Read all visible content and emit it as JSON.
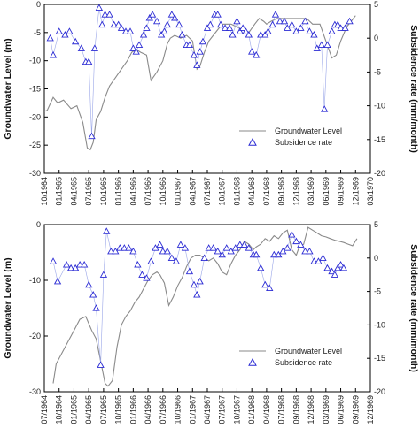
{
  "chart_data": [
    {
      "type": "line",
      "ylabel_left": "Groundwater Level (m)",
      "ylabel_right": "Subsidence rate (mm/month)",
      "y_left_range": [
        -30,
        0
      ],
      "y_left_ticks": [
        "0",
        "-5",
        "-10",
        "-15",
        "-20",
        "-25",
        "-30"
      ],
      "y_right_range": [
        -20,
        5
      ],
      "y_right_ticks": [
        "5",
        "0",
        "-5",
        "-10",
        "-15",
        "-20"
      ],
      "x_range": [
        0,
        22
      ],
      "x_ticks": [
        "10/1964",
        "01/1965",
        "04/1965",
        "07/1965",
        "10/1965",
        "01/1966",
        "04/1966",
        "07/1966",
        "10/1966",
        "01/1967",
        "04/1967",
        "07/1967",
        "10/1967",
        "01/1968",
        "04/1968",
        "07/1968",
        "09/1968",
        "12/1968",
        "03/1969",
        "06/1969",
        "09/1969",
        "12/1969",
        "03/1970"
      ],
      "legend_position": "lower-right",
      "series": [
        {
          "name": "Groundwater Level",
          "axis": "left",
          "style": "line",
          "color": "#8a8a8a",
          "x": [
            0,
            0.2,
            0.6,
            0.9,
            1.3,
            1.8,
            2.2,
            2.6,
            2.9,
            3.1,
            3.3,
            3.5,
            3.8,
            4.1,
            4.4,
            4.8,
            5.2,
            5.6,
            5.9,
            6.2,
            6.5,
            6.9,
            7.2,
            7.6,
            8.0,
            8.3,
            8.5,
            8.8,
            9.2,
            9.6,
            10.0,
            10.3,
            10.5,
            10.8,
            11.1,
            11.4,
            11.7,
            12.0,
            12.3,
            12.6,
            13.0,
            13.4,
            13.8,
            14.2,
            14.5,
            14.8,
            15.0,
            15.3,
            15.7,
            16.1,
            16.5,
            16.9,
            17.3,
            17.7,
            18.1,
            18.6,
            19.0,
            19.4,
            19.7,
            20.0,
            20.4,
            20.7,
            21.0
          ],
          "y": [
            -19.0,
            -18.8,
            -16.5,
            -17.5,
            -17.0,
            -18.5,
            -18.0,
            -21.0,
            -25.5,
            -25.8,
            -24.5,
            -20.5,
            -19.0,
            -16.5,
            -14.5,
            -13.0,
            -11.5,
            -10.0,
            -8.5,
            -8.0,
            -8.5,
            -9.0,
            -13.5,
            -12.0,
            -10.0,
            -7.0,
            -6.0,
            -5.5,
            -6.0,
            -5.5,
            -6.5,
            -11.5,
            -11.0,
            -8.5,
            -6.5,
            -5.5,
            -4.5,
            -3.5,
            -3.5,
            -3.5,
            -4.0,
            -4.5,
            -5.0,
            -3.5,
            -2.5,
            -3.0,
            -3.5,
            -3.0,
            -2.5,
            -2.5,
            -2.5,
            -2.5,
            -2.5,
            -2.5,
            -3.5,
            -3.5,
            -6.5,
            -9.5,
            -9.0,
            -6.5,
            -4.0,
            -3.0,
            -2.0
          ]
        },
        {
          "name": "Subsidence rate",
          "axis": "right",
          "style": "marker-line",
          "color": "#2b2bd4",
          "x": [
            0.4,
            0.6,
            1.0,
            1.4,
            1.7,
            2.1,
            2.5,
            2.8,
            3.0,
            3.2,
            3.4,
            3.7,
            3.9,
            4.1,
            4.4,
            4.7,
            5.0,
            5.2,
            5.5,
            5.8,
            6.0,
            6.2,
            6.4,
            6.7,
            6.9,
            7.1,
            7.3,
            7.6,
            7.9,
            8.1,
            8.3,
            8.6,
            8.8,
            9.1,
            9.3,
            9.6,
            9.8,
            10.1,
            10.3,
            10.5,
            10.7,
            11.0,
            11.2,
            11.5,
            11.7,
            11.9,
            12.2,
            12.5,
            12.7,
            13.0,
            13.2,
            13.4,
            13.6,
            13.8,
            14.0,
            14.3,
            14.6,
            14.9,
            15.1,
            15.4,
            15.6,
            15.9,
            16.2,
            16.4,
            16.7,
            17.0,
            17.3,
            17.6,
            17.9,
            18.2,
            18.4,
            18.7,
            18.9,
            19.1,
            19.4,
            19.6,
            19.8,
            20.0,
            20.3,
            20.6
          ],
          "y": [
            0.0,
            -2.5,
            1.0,
            0.5,
            1.0,
            -0.5,
            -1.5,
            -3.5,
            -3.5,
            -14.5,
            -1.5,
            4.5,
            2.0,
            3.5,
            3.5,
            2.0,
            2.0,
            1.5,
            1.0,
            1.0,
            -1.5,
            -2.0,
            -1.0,
            0.5,
            1.5,
            3.0,
            3.5,
            2.5,
            0.5,
            1.0,
            2.0,
            3.5,
            3.0,
            2.0,
            0.5,
            -1.0,
            -1.0,
            -2.5,
            -4.0,
            -2.0,
            -0.5,
            1.5,
            2.0,
            3.5,
            3.5,
            2.0,
            1.5,
            1.5,
            0.5,
            2.5,
            1.0,
            1.5,
            1.0,
            0.5,
            -2.0,
            -2.5,
            0.5,
            0.5,
            1.0,
            2.0,
            3.5,
            2.5,
            2.5,
            1.5,
            2.0,
            1.0,
            1.5,
            2.5,
            1.0,
            0.5,
            -1.5,
            -1.0,
            -10.5,
            -1.0,
            1.0,
            2.0,
            2.0,
            1.5,
            1.5,
            2.5
          ]
        }
      ]
    },
    {
      "type": "line",
      "ylabel_left": "Groundwater Level (m)",
      "ylabel_right": "Subsidence rate (mm/month)",
      "y_left_range": [
        -30,
        0
      ],
      "y_left_ticks": [
        "0",
        "-10",
        "-20",
        "-30"
      ],
      "y_right_range": [
        -20,
        5
      ],
      "y_right_ticks": [
        "5",
        "0",
        "-5",
        "-10",
        "-15",
        "-20"
      ],
      "x_range": [
        0,
        22
      ],
      "x_ticks": [
        "07/1964",
        "10/1964",
        "01/1965",
        "04/1965",
        "07/1965",
        "10/1965",
        "01/1966",
        "04/1966",
        "07/1966",
        "10/1966",
        "01/1967",
        "04/1967",
        "07/1967",
        "10/1967",
        "01/1968",
        "04/1968",
        "07/1968",
        "09/1968",
        "12/1968",
        "03/1969",
        "06/1969",
        "09/1969",
        "12/1969"
      ],
      "legend_position": "lower-right",
      "series": [
        {
          "name": "Groundwater Level",
          "axis": "left",
          "style": "line",
          "color": "#8a8a8a",
          "x": [
            0.6,
            0.8,
            1.2,
            1.6,
            2.0,
            2.4,
            2.8,
            3.2,
            3.5,
            3.8,
            4.1,
            4.3,
            4.6,
            4.9,
            5.2,
            5.5,
            5.8,
            6.1,
            6.4,
            6.7,
            7.0,
            7.3,
            7.6,
            7.8,
            8.1,
            8.4,
            8.7,
            9.0,
            9.3,
            9.6,
            9.9,
            10.2,
            10.5,
            10.8,
            11.1,
            11.4,
            11.7,
            12.0,
            12.3,
            12.6,
            12.9,
            13.2,
            13.5,
            13.8,
            14.1,
            14.3,
            14.6,
            14.9,
            15.2,
            15.5,
            15.8,
            16.1,
            16.4,
            16.7,
            17.0,
            17.2,
            17.5,
            17.8,
            18.1,
            18.4,
            18.7,
            19.0,
            19.3,
            19.6,
            19.9,
            20.2,
            20.5,
            20.8,
            21.1
          ],
          "y": [
            -28.5,
            -25.0,
            -23.0,
            -21.0,
            -19.0,
            -17.0,
            -16.5,
            -19.0,
            -20.5,
            -24.5,
            -28.5,
            -29.0,
            -28.0,
            -22.0,
            -18.0,
            -16.5,
            -15.5,
            -14.0,
            -13.0,
            -11.5,
            -10.0,
            -9.0,
            -8.5,
            -9.0,
            -10.5,
            -14.5,
            -13.0,
            -11.0,
            -9.5,
            -7.5,
            -6.0,
            -5.5,
            -5.5,
            -6.0,
            -6.5,
            -6.0,
            -7.0,
            -8.5,
            -9.0,
            -7.0,
            -5.5,
            -4.5,
            -3.0,
            -3.5,
            -4.5,
            -4.0,
            -3.5,
            -2.5,
            -3.0,
            -2.0,
            -2.5,
            -1.5,
            -1.0,
            -4.5,
            -5.5,
            -4.0,
            -3.5,
            -0.5,
            -1.0,
            -1.5,
            -2.0,
            -2.2,
            -2.5,
            -2.8,
            -3.0,
            -3.2,
            -3.5,
            -3.8,
            -2.5
          ]
        },
        {
          "name": "Subsidence rate",
          "axis": "right",
          "style": "marker-line",
          "color": "#2b2bd4",
          "x": [
            0.6,
            0.9,
            1.5,
            1.8,
            2.1,
            2.4,
            2.7,
            3.0,
            3.3,
            3.5,
            3.8,
            4.0,
            4.2,
            4.5,
            4.8,
            5.1,
            5.4,
            5.7,
            6.0,
            6.3,
            6.6,
            6.9,
            7.2,
            7.5,
            7.8,
            8.0,
            8.3,
            8.6,
            8.9,
            9.2,
            9.5,
            9.8,
            10.1,
            10.3,
            10.5,
            10.8,
            11.1,
            11.4,
            11.7,
            12.0,
            12.3,
            12.6,
            12.9,
            13.2,
            13.5,
            13.8,
            14.1,
            14.3,
            14.6,
            14.9,
            15.2,
            15.5,
            15.8,
            16.1,
            16.4,
            16.7,
            17.0,
            17.3,
            17.6,
            17.9,
            18.2,
            18.5,
            18.8,
            19.1,
            19.4,
            19.6,
            19.8,
            20.0,
            20.2
          ],
          "y": [
            -0.5,
            -3.5,
            -1.0,
            -1.5,
            -1.5,
            -1.0,
            -1.0,
            -4.0,
            -5.5,
            -7.5,
            -16.0,
            -2.5,
            4.0,
            1.0,
            1.0,
            1.5,
            1.5,
            1.5,
            1.0,
            -1.0,
            -2.5,
            -3.0,
            -0.5,
            1.5,
            2.0,
            1.0,
            1.0,
            0.0,
            -0.5,
            2.0,
            1.5,
            -2.0,
            -4.0,
            -5.5,
            -3.5,
            0.0,
            1.5,
            1.5,
            1.0,
            0.5,
            1.5,
            1.0,
            1.5,
            2.0,
            2.0,
            1.5,
            0.5,
            0.5,
            -1.5,
            -4.0,
            -4.5,
            0.5,
            0.5,
            1.0,
            1.5,
            3.5,
            2.5,
            2.0,
            1.0,
            1.0,
            -0.5,
            -0.5,
            0.0,
            -1.5,
            -2.0,
            -2.5,
            -1.5,
            -1.0,
            -1.5
          ]
        }
      ]
    }
  ]
}
